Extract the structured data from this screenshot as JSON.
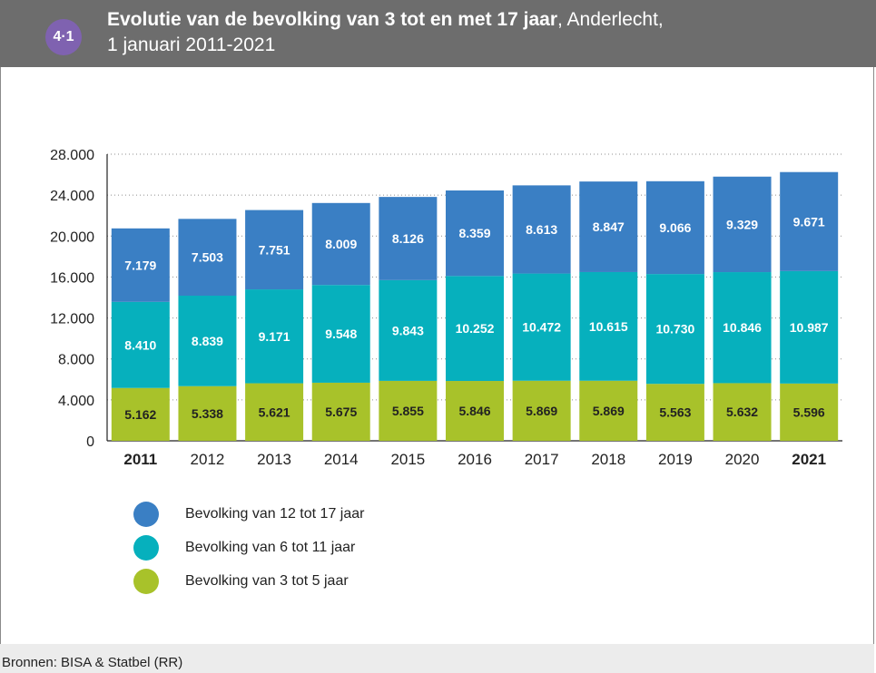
{
  "header": {
    "badge": "4·1",
    "title_bold": "Evolutie van de bevolking van 3 tot en met 17 jaar",
    "title_rest": ", Anderlecht,",
    "subtitle": "1 januari 2011-2021"
  },
  "footer": {
    "source": "Bronnen: BISA & Statbel (RR)"
  },
  "colors": {
    "header_bg": "#6d6d6d",
    "badge": "#7f62b0",
    "age_12_17": "#3a7fc4",
    "age_6_11": "#06b0bd",
    "age_3_5": "#a8c22a"
  },
  "chart_data": {
    "type": "bar",
    "stacked": true,
    "categories": [
      "2011",
      "2012",
      "2013",
      "2014",
      "2015",
      "2016",
      "2017",
      "2018",
      "2019",
      "2020",
      "2021"
    ],
    "bold_categories": [
      "2011",
      "2021"
    ],
    "series": [
      {
        "name": "Bevolking van 3 tot 5 jaar",
        "color": "#a8c22a",
        "values": [
          5162,
          5338,
          5621,
          5675,
          5855,
          5846,
          5869,
          5869,
          5563,
          5632,
          5596
        ],
        "labels": [
          "5.162",
          "5.338",
          "5.621",
          "5.675",
          "5.855",
          "5.846",
          "5.869",
          "5.869",
          "5.563",
          "5.632",
          "5.596"
        ]
      },
      {
        "name": "Bevolking van 6 tot 11 jaar",
        "color": "#06b0bd",
        "values": [
          8410,
          8839,
          9171,
          9548,
          9843,
          10252,
          10472,
          10615,
          10730,
          10846,
          10987
        ],
        "labels": [
          "8.410",
          "8.839",
          "9.171",
          "9.548",
          "9.843",
          "10.252",
          "10.472",
          "10.615",
          "10.730",
          "10.846",
          "10.987"
        ]
      },
      {
        "name": "Bevolking van 12 tot 17 jaar",
        "color": "#3a7fc4",
        "values": [
          7179,
          7503,
          7751,
          8009,
          8126,
          8359,
          8613,
          8847,
          9066,
          9329,
          9671
        ],
        "labels": [
          "7.179",
          "7.503",
          "7.751",
          "8.009",
          "8.126",
          "8.359",
          "8.613",
          "8.847",
          "9.066",
          "9.329",
          "9.671"
        ]
      }
    ],
    "ylim": [
      0,
      28000
    ],
    "yticks": [
      0,
      4000,
      8000,
      12000,
      16000,
      20000,
      24000,
      28000
    ],
    "ytick_labels": [
      "0",
      "4.000",
      "8.000",
      "12.000",
      "16.000",
      "20.000",
      "24.000",
      "28.000"
    ],
    "legend_order": [
      "Bevolking van 12 tot 17 jaar",
      "Bevolking van 6 tot 11 jaar",
      "Bevolking van 3 tot 5 jaar"
    ],
    "grid": true,
    "legend_position": "bottom-left"
  }
}
